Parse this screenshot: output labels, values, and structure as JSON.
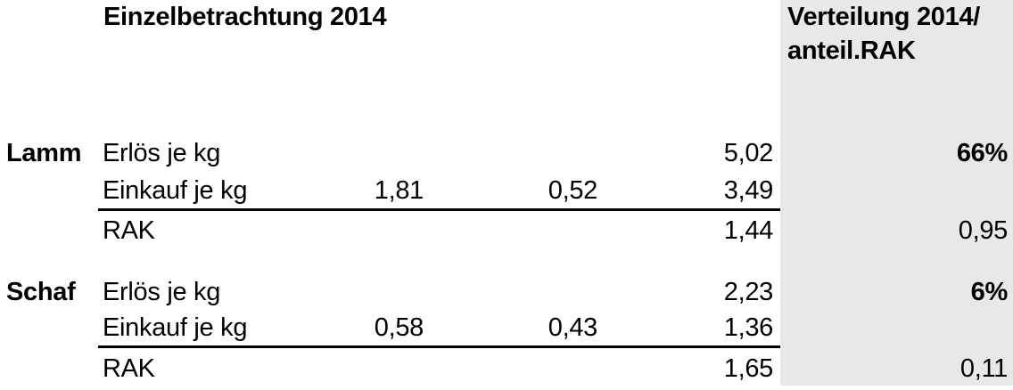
{
  "titles": {
    "main": "Einzelbetrachtung 2014",
    "right_col_line1": "Verteilung 2014/",
    "right_col_line2": "anteil.RAK"
  },
  "colors": {
    "highlight_column_bg": "#e8e8e8",
    "text": "#000000",
    "rule": "#000000"
  },
  "table": {
    "groups": [
      {
        "name": "Lamm",
        "rows": [
          {
            "label": "Erlös je kg",
            "c": "",
            "d": "",
            "total": "5,02",
            "share": "66%"
          },
          {
            "label": "Einkauf je kg",
            "c": "1,81",
            "d": "0,52",
            "total": "3,49",
            "share": ""
          },
          {
            "label": "RAK",
            "c": "",
            "d": "",
            "total": "1,44",
            "share": "0,95"
          }
        ]
      },
      {
        "name": "Schaf",
        "rows": [
          {
            "label": "Erlös je kg",
            "c": "",
            "d": "",
            "total": "2,23",
            "share": "6%"
          },
          {
            "label": "Einkauf je kg",
            "c": "0,58",
            "d": "0,43",
            "total": "1,36",
            "share": ""
          },
          {
            "label": "RAK",
            "c": "",
            "d": "",
            "total": "1,65",
            "share": "0,11"
          }
        ]
      }
    ]
  }
}
